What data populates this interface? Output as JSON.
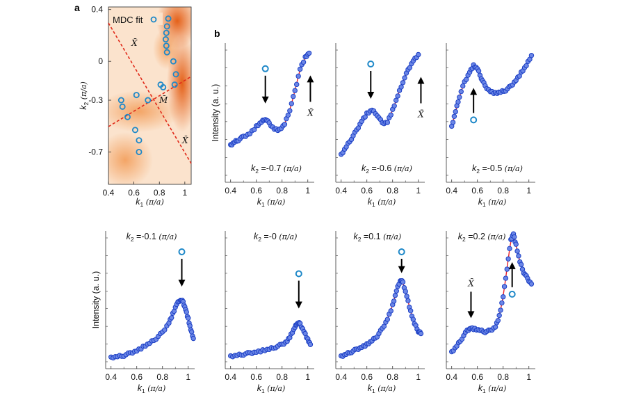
{
  "figure": {
    "panel_a_letter": "a",
    "panel_b_letter": "b",
    "colors": {
      "fit": "#e8202a",
      "dot_fill": "#6b86e6",
      "dot_stroke": "#1c3fc4",
      "mdc_ring": "#1e88c8",
      "dashed": "#e02818"
    }
  },
  "chart_data": [
    {
      "type": "heatmap",
      "panel": "a",
      "xlabel": "k1 (π/a)",
      "ylabel": "k2 (π/a)",
      "xlim": [
        0.4,
        1.05
      ],
      "ylim": [
        -0.95,
        0.42
      ],
      "xticks": [
        "0.4",
        "0.6",
        "0.8",
        "1"
      ],
      "yticks": [
        "0.4",
        "0",
        "-0.3",
        "-0.7"
      ],
      "legend": "MDC fit",
      "symmetry_labels": {
        "x_bar_top": "X̄",
        "m_bar": "M̄",
        "x_bar_bottom": "X̄"
      },
      "mdc_points": [
        [
          0.87,
          0.33
        ],
        [
          0.86,
          0.27
        ],
        [
          0.855,
          0.22
        ],
        [
          0.85,
          0.17
        ],
        [
          0.855,
          0.12
        ],
        [
          0.86,
          0.07
        ],
        [
          0.91,
          0.0
        ],
        [
          0.93,
          -0.1
        ],
        [
          0.92,
          -0.18
        ],
        [
          0.81,
          -0.18
        ],
        [
          0.83,
          -0.2
        ],
        [
          0.62,
          -0.26
        ],
        [
          0.5,
          -0.3
        ],
        [
          0.51,
          -0.35
        ],
        [
          0.71,
          -0.3
        ],
        [
          0.55,
          -0.43
        ],
        [
          0.61,
          -0.53
        ],
        [
          0.64,
          -0.61
        ],
        [
          0.64,
          -0.7
        ]
      ]
    },
    {
      "type": "scatter",
      "panel": "b",
      "label": "k2 =-0.7 (π/a)",
      "ylabel": "Intensity (a. u.)",
      "xlabel": "k1 (π/a)",
      "xlim": [
        0.38,
        1.05
      ],
      "ylim": [
        0,
        1
      ],
      "xticks": [
        "0.4",
        "0.6",
        "0.8",
        "1"
      ],
      "peak_markers": [
        {
          "x": 0.67,
          "type": "mdc",
          "direction": "down"
        },
        {
          "x": 1.02,
          "type": "xbar",
          "direction": "up",
          "label": "X̄"
        }
      ],
      "points": [
        [
          0.4,
          0.13
        ],
        [
          0.43,
          0.16
        ],
        [
          0.46,
          0.18
        ],
        [
          0.5,
          0.21
        ],
        [
          0.55,
          0.24
        ],
        [
          0.6,
          0.3
        ],
        [
          0.64,
          0.34
        ],
        [
          0.67,
          0.37
        ],
        [
          0.7,
          0.33
        ],
        [
          0.74,
          0.28
        ],
        [
          0.78,
          0.27
        ],
        [
          0.82,
          0.32
        ],
        [
          0.86,
          0.45
        ],
        [
          0.9,
          0.62
        ],
        [
          0.94,
          0.82
        ],
        [
          0.98,
          0.92
        ],
        [
          1.01,
          0.96
        ]
      ]
    },
    {
      "type": "scatter",
      "panel": "b",
      "label": "k2 =-0.6 (π/a)",
      "xlabel": "k1 (π/a)",
      "xlim": [
        0.38,
        1.05
      ],
      "ylim": [
        0,
        1
      ],
      "xticks": [
        "0.4",
        "0.6",
        "0.8",
        "1"
      ],
      "peak_markers": [
        {
          "x": 0.63,
          "type": "mdc",
          "direction": "down"
        },
        {
          "x": 1.02,
          "type": "xbar",
          "direction": "up",
          "label": "X̄"
        }
      ],
      "points": [
        [
          0.4,
          0.1
        ],
        [
          0.44,
          0.17
        ],
        [
          0.48,
          0.24
        ],
        [
          0.52,
          0.31
        ],
        [
          0.56,
          0.39
        ],
        [
          0.6,
          0.45
        ],
        [
          0.64,
          0.48
        ],
        [
          0.68,
          0.44
        ],
        [
          0.72,
          0.37
        ],
        [
          0.76,
          0.38
        ],
        [
          0.8,
          0.48
        ],
        [
          0.84,
          0.6
        ],
        [
          0.88,
          0.72
        ],
        [
          0.92,
          0.82
        ],
        [
          0.96,
          0.9
        ],
        [
          1.0,
          0.95
        ]
      ]
    },
    {
      "type": "scatter",
      "panel": "b",
      "label": "k2 =-0.5 (π/a)",
      "xlabel": "k1 (π/a)",
      "xlim": [
        0.38,
        1.05
      ],
      "ylim": [
        0,
        1
      ],
      "xticks": [
        "0.4",
        "0.6",
        "0.8",
        "1"
      ],
      "peak_markers": [
        {
          "x": 0.57,
          "type": "mdc",
          "direction": "up"
        }
      ],
      "points": [
        [
          0.4,
          0.2
        ],
        [
          0.43,
          0.35
        ],
        [
          0.46,
          0.5
        ],
        [
          0.5,
          0.64
        ],
        [
          0.54,
          0.74
        ],
        [
          0.57,
          0.8
        ],
        [
          0.6,
          0.77
        ],
        [
          0.63,
          0.68
        ],
        [
          0.66,
          0.6
        ],
        [
          0.7,
          0.55
        ],
        [
          0.74,
          0.53
        ],
        [
          0.78,
          0.54
        ],
        [
          0.82,
          0.56
        ],
        [
          0.86,
          0.6
        ],
        [
          0.9,
          0.66
        ],
        [
          0.94,
          0.73
        ],
        [
          0.98,
          0.8
        ],
        [
          1.02,
          0.9
        ]
      ]
    },
    {
      "type": "scatter",
      "panel": "b",
      "label": "k2 =-0.1 (π/a)",
      "ylabel": "Intensity (a. u.)",
      "xlabel": "k1 (π/a)",
      "xlim": [
        0.38,
        1.05
      ],
      "ylim": [
        0,
        1
      ],
      "xticks": [
        "0.4",
        "0.6",
        "0.8",
        "1"
      ],
      "peak_markers": [
        {
          "x": 0.95,
          "type": "mdc",
          "direction": "down"
        }
      ],
      "points": [
        [
          0.4,
          0.02
        ],
        [
          0.45,
          0.03
        ],
        [
          0.5,
          0.04
        ],
        [
          0.55,
          0.06
        ],
        [
          0.6,
          0.08
        ],
        [
          0.65,
          0.11
        ],
        [
          0.7,
          0.14
        ],
        [
          0.75,
          0.18
        ],
        [
          0.8,
          0.23
        ],
        [
          0.85,
          0.31
        ],
        [
          0.88,
          0.38
        ],
        [
          0.91,
          0.46
        ],
        [
          0.94,
          0.5
        ],
        [
          0.96,
          0.48
        ],
        [
          0.98,
          0.42
        ],
        [
          1.0,
          0.34
        ],
        [
          1.02,
          0.25
        ],
        [
          1.04,
          0.18
        ]
      ]
    },
    {
      "type": "scatter",
      "panel": "b",
      "label": "k2 =-0 (π/a)",
      "xlabel": "k1 (π/a)",
      "xlim": [
        0.38,
        1.05
      ],
      "ylim": [
        0,
        1
      ],
      "xticks": [
        "0.4",
        "0.6",
        "0.8",
        "1"
      ],
      "peak_markers": [
        {
          "x": 0.93,
          "type": "mdc",
          "direction": "down"
        }
      ],
      "points": [
        [
          0.4,
          0.03
        ],
        [
          0.45,
          0.04
        ],
        [
          0.5,
          0.05
        ],
        [
          0.55,
          0.06
        ],
        [
          0.6,
          0.07
        ],
        [
          0.65,
          0.08
        ],
        [
          0.7,
          0.09
        ],
        [
          0.75,
          0.11
        ],
        [
          0.8,
          0.13
        ],
        [
          0.84,
          0.16
        ],
        [
          0.87,
          0.21
        ],
        [
          0.9,
          0.27
        ],
        [
          0.92,
          0.31
        ],
        [
          0.94,
          0.3
        ],
        [
          0.97,
          0.24
        ],
        [
          1.0,
          0.17
        ],
        [
          1.02,
          0.13
        ]
      ]
    },
    {
      "type": "scatter",
      "panel": "b",
      "label": "k2 =0.1 (π/a)",
      "xlabel": "k1 (π/a)",
      "xlim": [
        0.38,
        1.05
      ],
      "ylim": [
        0,
        1
      ],
      "xticks": [
        "0.4",
        "0.6",
        "0.8",
        "1"
      ],
      "peak_markers": [
        {
          "x": 0.87,
          "type": "mdc",
          "direction": "down"
        }
      ],
      "points": [
        [
          0.4,
          0.03
        ],
        [
          0.44,
          0.05
        ],
        [
          0.48,
          0.07
        ],
        [
          0.52,
          0.09
        ],
        [
          0.56,
          0.11
        ],
        [
          0.6,
          0.13
        ],
        [
          0.64,
          0.16
        ],
        [
          0.68,
          0.2
        ],
        [
          0.72,
          0.26
        ],
        [
          0.76,
          0.34
        ],
        [
          0.8,
          0.45
        ],
        [
          0.83,
          0.57
        ],
        [
          0.86,
          0.66
        ],
        [
          0.88,
          0.64
        ],
        [
          0.91,
          0.53
        ],
        [
          0.94,
          0.4
        ],
        [
          0.97,
          0.3
        ],
        [
          1.0,
          0.24
        ],
        [
          1.02,
          0.22
        ]
      ]
    },
    {
      "type": "scatter",
      "panel": "b",
      "label": "k2 =0.2 (π/a)",
      "xlabel": "k1 (π/a)",
      "xlim": [
        0.38,
        1.05
      ],
      "ylim": [
        0,
        1
      ],
      "xticks": [
        "0.4",
        "0.6",
        "0.8",
        "1"
      ],
      "peak_markers": [
        {
          "x": 0.55,
          "type": "xbar",
          "direction": "down",
          "label": "X̄"
        },
        {
          "x": 0.87,
          "type": "mdc",
          "direction": "up"
        }
      ],
      "points": [
        [
          0.4,
          0.05
        ],
        [
          0.44,
          0.1
        ],
        [
          0.48,
          0.16
        ],
        [
          0.52,
          0.22
        ],
        [
          0.55,
          0.24
        ],
        [
          0.58,
          0.23
        ],
        [
          0.62,
          0.22
        ],
        [
          0.66,
          0.21
        ],
        [
          0.7,
          0.22
        ],
        [
          0.74,
          0.25
        ],
        [
          0.77,
          0.33
        ],
        [
          0.8,
          0.48
        ],
        [
          0.83,
          0.7
        ],
        [
          0.86,
          0.92
        ],
        [
          0.88,
          0.97
        ],
        [
          0.9,
          0.88
        ],
        [
          0.93,
          0.75
        ],
        [
          0.96,
          0.67
        ],
        [
          0.99,
          0.62
        ],
        [
          1.02,
          0.58
        ]
      ]
    }
  ]
}
